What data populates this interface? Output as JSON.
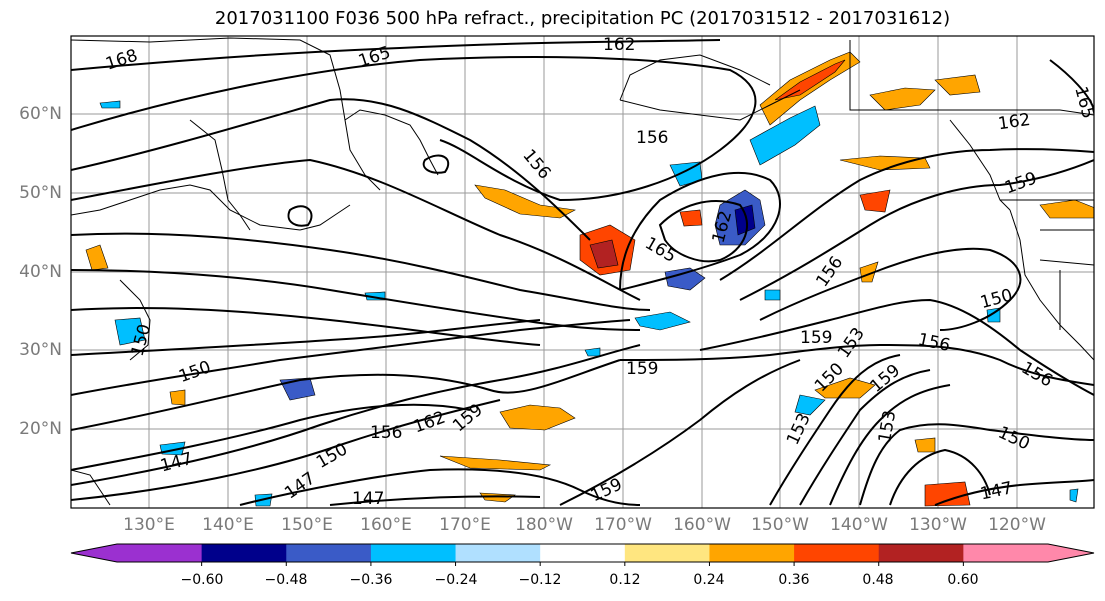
{
  "title": "2017031100 F036 500 hPa refract., precipitation PC (2017031512 - 2017031612)",
  "lat_labels": [
    "60°N",
    "50°N",
    "40°N",
    "30°N",
    "20°N"
  ],
  "lon_labels": [
    "130°E",
    "140°E",
    "150°E",
    "160°E",
    "170°E",
    "180°W",
    "170°W",
    "160°W",
    "150°W",
    "140°W",
    "130°W",
    "120°W"
  ],
  "contour_labels": [
    "168",
    "165",
    "162",
    "165",
    "156",
    "156",
    "162",
    "165",
    "162",
    "159",
    "156",
    "150",
    "159",
    "153",
    "156",
    "159",
    "150",
    "150",
    "156",
    "153",
    "153",
    "159",
    "150",
    "147",
    "150",
    "147",
    "147",
    "156",
    "162",
    "159",
    "147",
    "150",
    "159"
  ],
  "colorbar": {
    "colors": [
      "#9b30d0",
      "#00008b",
      "#3a5bc7",
      "#00bfff",
      "#b0e0ff",
      "#ffffff",
      "#ffe680",
      "#ffa500",
      "#ff4500",
      "#b22222",
      "#ff88aa"
    ],
    "ticks": [
      "−0.60",
      "−0.48",
      "−0.36",
      "−0.24",
      "−0.12",
      "0.12",
      "0.24",
      "0.36",
      "0.48",
      "0.60"
    ]
  }
}
